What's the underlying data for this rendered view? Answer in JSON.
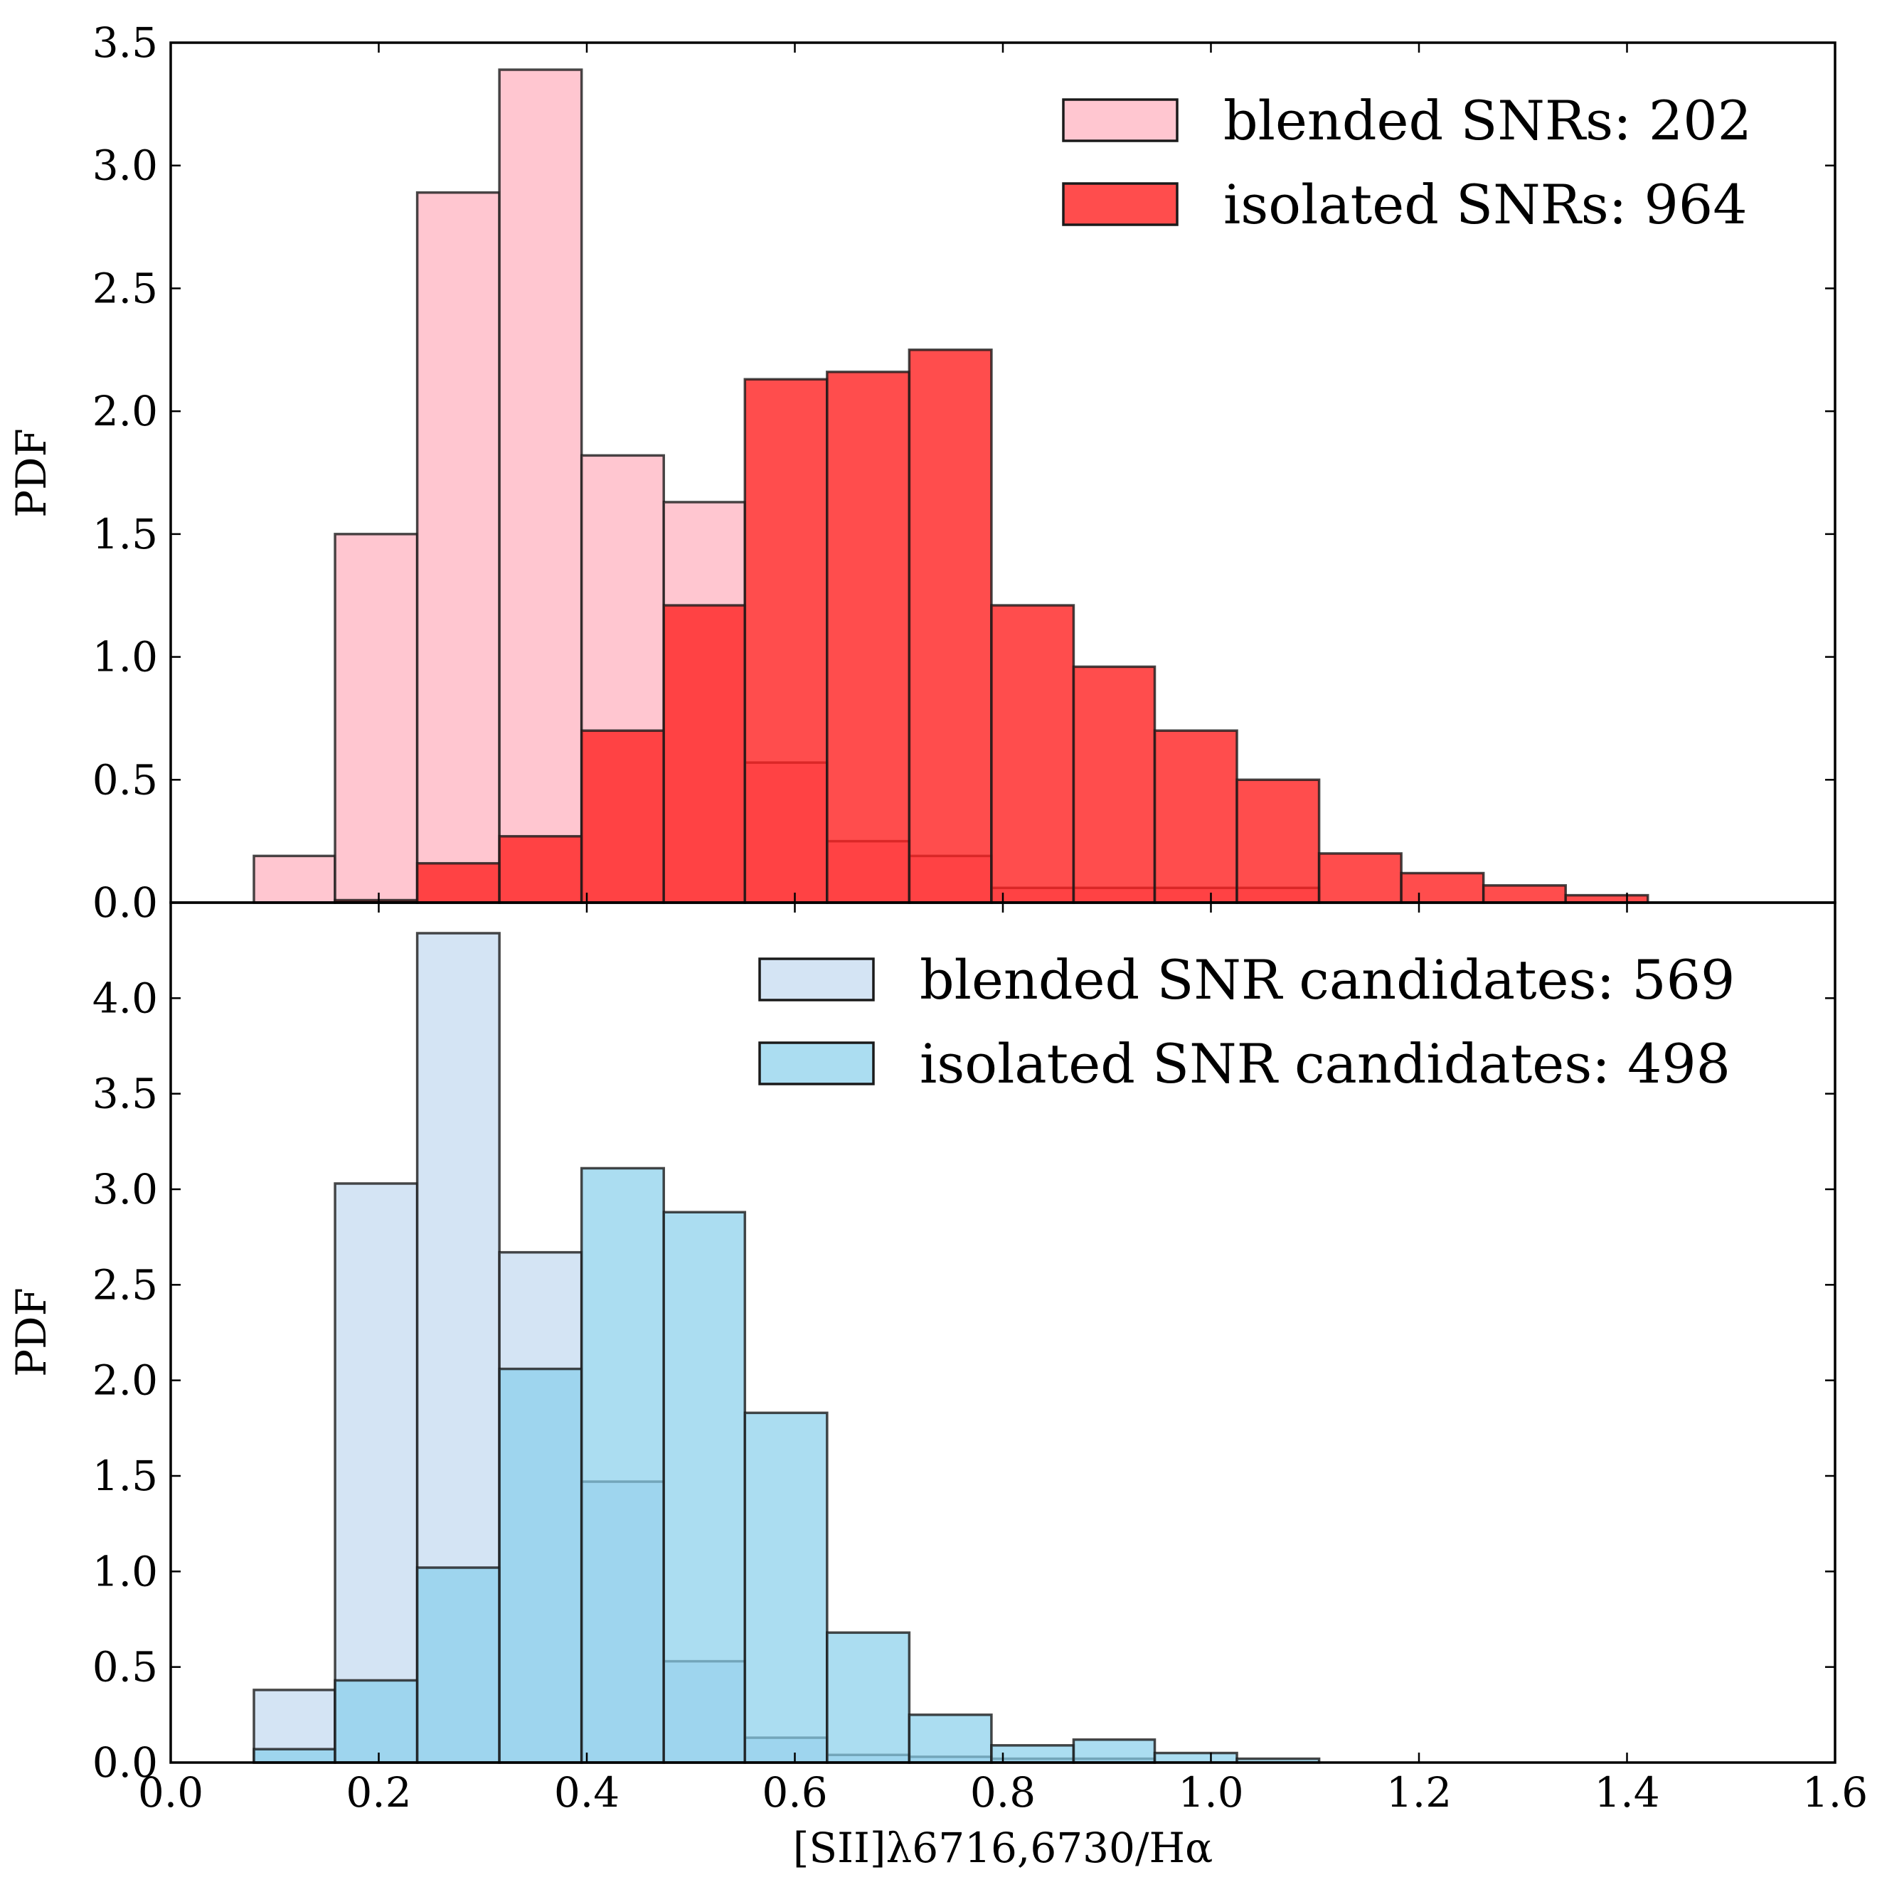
{
  "chart_data": [
    {
      "type": "bar",
      "panel": "top",
      "ylabel": "PDF",
      "ylim": [
        0,
        3.5
      ],
      "yticks": [
        "0.0",
        "0.5",
        "1.0",
        "1.5",
        "2.0",
        "2.5",
        "3.0",
        "3.5"
      ],
      "bin_edges": [
        0.08,
        0.158,
        0.237,
        0.316,
        0.395,
        0.474,
        0.552,
        0.631,
        0.71,
        0.789,
        0.868,
        0.946,
        1.025,
        1.104,
        1.183,
        1.262,
        1.341,
        1.42
      ],
      "legend_position": "top-right",
      "series": [
        {
          "name": "blended SNRs: 202",
          "color": "#ffc0cb",
          "opacity": 0.9,
          "values": [
            0.19,
            1.5,
            2.89,
            3.39,
            1.82,
            1.63,
            0.57,
            0.25,
            0.19,
            0.06,
            0.06,
            0.06,
            0.06,
            0,
            0,
            0,
            0
          ]
        },
        {
          "name": "isolated SNRs: 964",
          "color": "#ff2020",
          "opacity": 0.8,
          "values": [
            0,
            0.01,
            0.16,
            0.27,
            0.7,
            1.21,
            2.13,
            2.16,
            2.25,
            1.21,
            0.96,
            0.7,
            0.5,
            0.2,
            0.12,
            0.07,
            0.03
          ]
        }
      ]
    },
    {
      "type": "bar",
      "panel": "bottom",
      "xlabel": "[SII]λ6716,6730/Hα",
      "ylabel": "PDF",
      "xlim": [
        0.0,
        1.6
      ],
      "xticks": [
        "0.0",
        "0.2",
        "0.4",
        "0.6",
        "0.8",
        "1.0",
        "1.2",
        "1.4",
        "1.6"
      ],
      "ylim": [
        0,
        4.5
      ],
      "yticks": [
        "0.0",
        "0.5",
        "1.0",
        "1.5",
        "2.0",
        "2.5",
        "3.0",
        "3.5",
        "4.0"
      ],
      "bin_edges": [
        0.08,
        0.158,
        0.237,
        0.316,
        0.395,
        0.474,
        0.552,
        0.631,
        0.71,
        0.789,
        0.868,
        0.946,
        1.025,
        1.104
      ],
      "legend_position": "top-right",
      "series": [
        {
          "name": "blended SNR candidates: 569",
          "color": "#cfe1f3",
          "opacity": 0.9,
          "values": [
            0.38,
            3.03,
            4.34,
            2.67,
            1.47,
            0.53,
            0.13,
            0.04,
            0.03,
            0.02,
            0.02,
            0,
            0
          ]
        },
        {
          "name": "isolated SNR candidates: 498",
          "color": "#87ceeb",
          "opacity": 0.7,
          "values": [
            0.07,
            0.43,
            1.02,
            2.06,
            3.11,
            2.88,
            1.83,
            0.68,
            0.25,
            0.09,
            0.12,
            0.05,
            0.02
          ]
        }
      ]
    }
  ]
}
